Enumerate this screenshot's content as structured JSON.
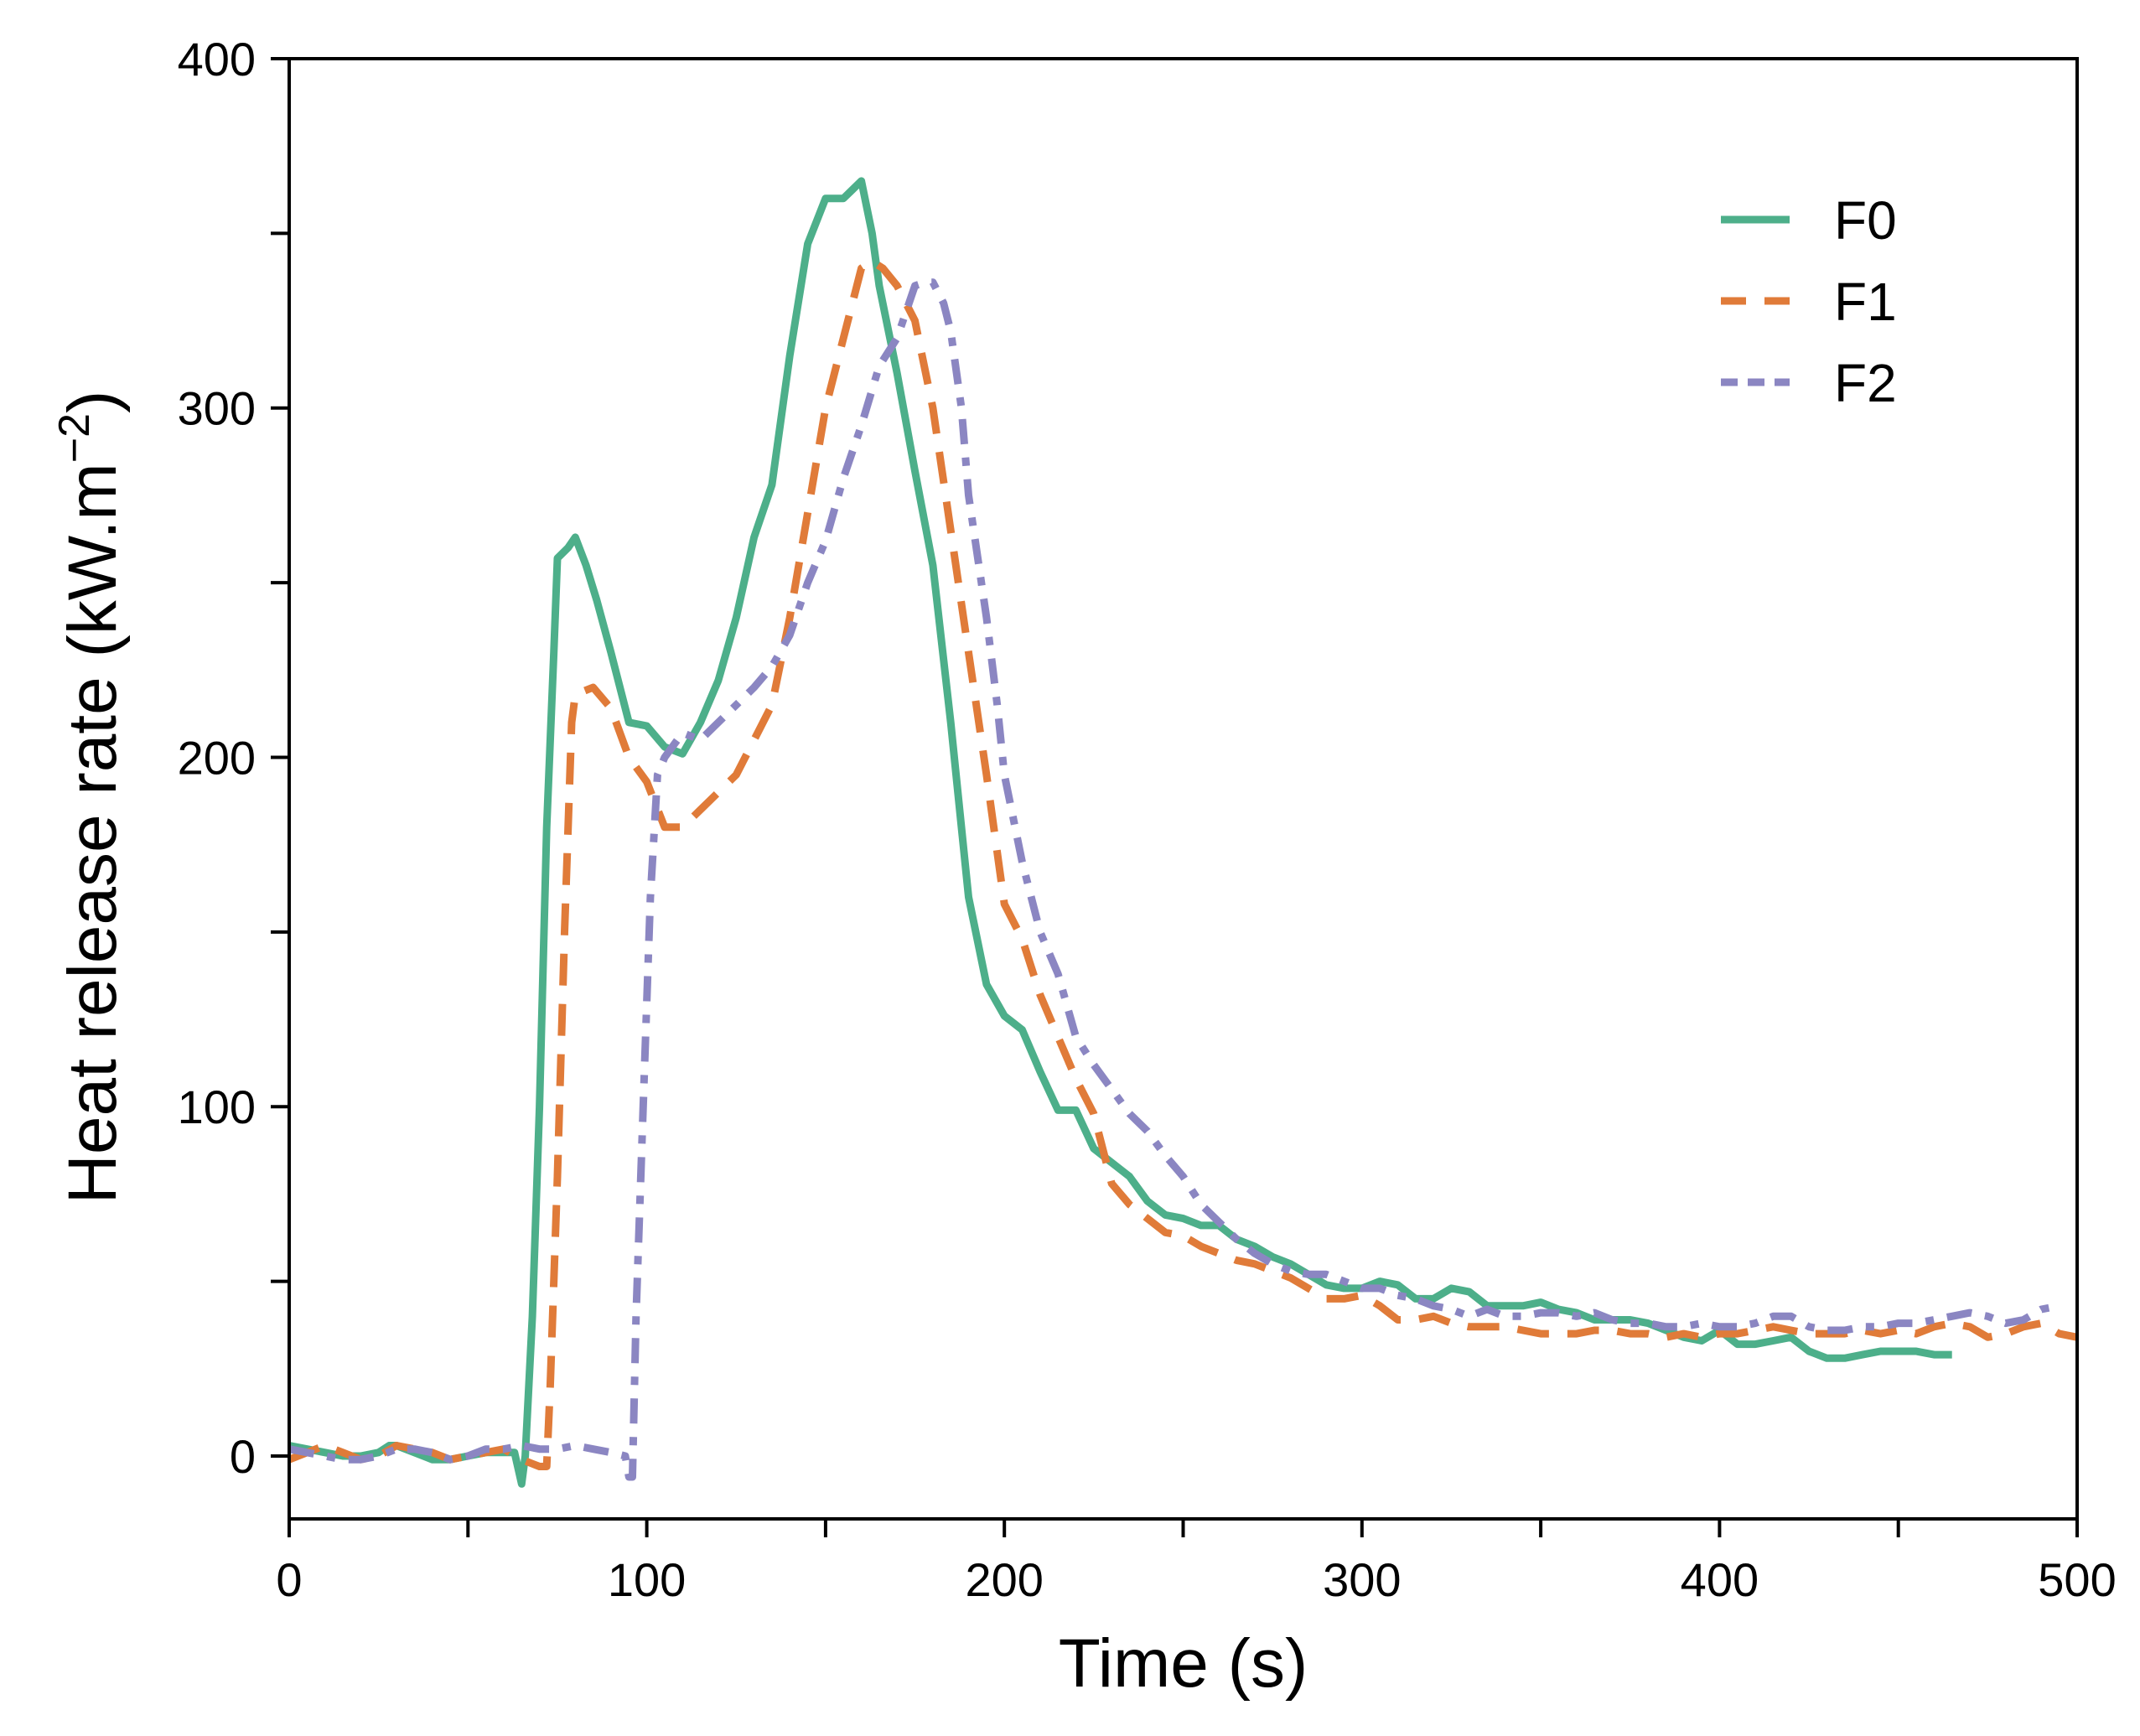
{
  "chart_data": {
    "type": "line",
    "xlabel": "Time (s)",
    "ylabel": "Heat release rate (kW.m",
    "ylabel_superscript": "−2",
    "ylabel_close": ")",
    "xlim": [
      0,
      500
    ],
    "ylim": [
      -18,
      400
    ],
    "xticks": [
      0,
      100,
      200,
      300,
      400,
      500
    ],
    "xtick_labels": [
      "0",
      "100",
      "200",
      "300",
      "400",
      "500"
    ],
    "x_minor_ticks": [
      50,
      150,
      250,
      350,
      450
    ],
    "yticks": [
      0,
      100,
      200,
      300,
      400
    ],
    "ytick_labels": [
      "0",
      "100",
      "200",
      "300",
      "400"
    ],
    "y_minor_ticks": [
      50,
      150,
      250,
      350
    ],
    "legend_position": "top-right",
    "series": [
      {
        "name": "F0",
        "color": "#4daf8a",
        "dash": "solid",
        "points": [
          [
            0,
            3
          ],
          [
            5,
            2
          ],
          [
            10,
            1
          ],
          [
            15,
            0
          ],
          [
            20,
            0
          ],
          [
            25,
            1
          ],
          [
            28,
            3
          ],
          [
            30,
            3
          ],
          [
            35,
            1
          ],
          [
            40,
            -1
          ],
          [
            45,
            -1
          ],
          [
            50,
            0
          ],
          [
            55,
            1
          ],
          [
            60,
            1
          ],
          [
            63,
            1
          ],
          [
            65,
            -8
          ],
          [
            66,
            0
          ],
          [
            68,
            40
          ],
          [
            70,
            100
          ],
          [
            72,
            180
          ],
          [
            74,
            230
          ],
          [
            75,
            257
          ],
          [
            78,
            260
          ],
          [
            80,
            263
          ],
          [
            83,
            255
          ],
          [
            86,
            245
          ],
          [
            90,
            230
          ],
          [
            95,
            210
          ],
          [
            100,
            209
          ],
          [
            105,
            203
          ],
          [
            110,
            201
          ],
          [
            115,
            210
          ],
          [
            120,
            222
          ],
          [
            125,
            240
          ],
          [
            130,
            263
          ],
          [
            135,
            278
          ],
          [
            140,
            315
          ],
          [
            145,
            347
          ],
          [
            150,
            360
          ],
          [
            155,
            360
          ],
          [
            160,
            365
          ],
          [
            163,
            350
          ],
          [
            165,
            335
          ],
          [
            170,
            310
          ],
          [
            175,
            282
          ],
          [
            180,
            255
          ],
          [
            185,
            210
          ],
          [
            190,
            160
          ],
          [
            195,
            135
          ],
          [
            200,
            126
          ],
          [
            205,
            122
          ],
          [
            210,
            110
          ],
          [
            215,
            99
          ],
          [
            220,
            99
          ],
          [
            225,
            88
          ],
          [
            230,
            84
          ],
          [
            235,
            80
          ],
          [
            240,
            73
          ],
          [
            245,
            69
          ],
          [
            250,
            68
          ],
          [
            255,
            66
          ],
          [
            260,
            66
          ],
          [
            265,
            62
          ],
          [
            270,
            60
          ],
          [
            275,
            57
          ],
          [
            280,
            55
          ],
          [
            285,
            52
          ],
          [
            290,
            49
          ],
          [
            295,
            48
          ],
          [
            300,
            48
          ],
          [
            305,
            50
          ],
          [
            310,
            49
          ],
          [
            315,
            45
          ],
          [
            320,
            45
          ],
          [
            325,
            48
          ],
          [
            330,
            47
          ],
          [
            335,
            43
          ],
          [
            340,
            43
          ],
          [
            345,
            43
          ],
          [
            350,
            44
          ],
          [
            355,
            42
          ],
          [
            360,
            41
          ],
          [
            365,
            39
          ],
          [
            370,
            39
          ],
          [
            375,
            39
          ],
          [
            380,
            38
          ],
          [
            385,
            36
          ],
          [
            390,
            34
          ],
          [
            395,
            33
          ],
          [
            400,
            36
          ],
          [
            405,
            32
          ],
          [
            410,
            32
          ],
          [
            415,
            33
          ],
          [
            420,
            34
          ],
          [
            425,
            30
          ],
          [
            430,
            28
          ],
          [
            435,
            28
          ],
          [
            440,
            29
          ],
          [
            445,
            30
          ],
          [
            450,
            30
          ],
          [
            455,
            30
          ],
          [
            460,
            29
          ],
          [
            465,
            29
          ]
        ]
      },
      {
        "name": "F1",
        "color": "#e07b39",
        "dash": "long-dash",
        "points": [
          [
            0,
            -1
          ],
          [
            5,
            1
          ],
          [
            10,
            3
          ],
          [
            15,
            1
          ],
          [
            20,
            -1
          ],
          [
            25,
            0
          ],
          [
            30,
            3
          ],
          [
            35,
            2
          ],
          [
            40,
            1
          ],
          [
            45,
            -1
          ],
          [
            50,
            0
          ],
          [
            55,
            1
          ],
          [
            60,
            2
          ],
          [
            65,
            -1
          ],
          [
            70,
            -3
          ],
          [
            72,
            -3
          ],
          [
            73,
            20
          ],
          [
            75,
            80
          ],
          [
            77,
            150
          ],
          [
            79,
            210
          ],
          [
            80,
            218
          ],
          [
            85,
            220
          ],
          [
            90,
            214
          ],
          [
            95,
            200
          ],
          [
            100,
            193
          ],
          [
            105,
            180
          ],
          [
            110,
            180
          ],
          [
            115,
            185
          ],
          [
            120,
            190
          ],
          [
            125,
            195
          ],
          [
            130,
            205
          ],
          [
            135,
            215
          ],
          [
            140,
            240
          ],
          [
            145,
            270
          ],
          [
            150,
            300
          ],
          [
            155,
            320
          ],
          [
            160,
            340
          ],
          [
            163,
            342
          ],
          [
            166,
            340
          ],
          [
            170,
            335
          ],
          [
            175,
            325
          ],
          [
            180,
            300
          ],
          [
            185,
            265
          ],
          [
            190,
            230
          ],
          [
            195,
            195
          ],
          [
            200,
            158
          ],
          [
            205,
            148
          ],
          [
            210,
            132
          ],
          [
            215,
            120
          ],
          [
            220,
            108
          ],
          [
            225,
            98
          ],
          [
            230,
            78
          ],
          [
            235,
            72
          ],
          [
            240,
            68
          ],
          [
            245,
            64
          ],
          [
            250,
            63
          ],
          [
            255,
            60
          ],
          [
            260,
            58
          ],
          [
            265,
            56
          ],
          [
            270,
            55
          ],
          [
            275,
            53
          ],
          [
            280,
            51
          ],
          [
            285,
            48
          ],
          [
            290,
            45
          ],
          [
            295,
            45
          ],
          [
            300,
            46
          ],
          [
            305,
            43
          ],
          [
            310,
            39
          ],
          [
            315,
            39
          ],
          [
            320,
            40
          ],
          [
            325,
            38
          ],
          [
            330,
            37
          ],
          [
            335,
            37
          ],
          [
            340,
            37
          ],
          [
            345,
            36
          ],
          [
            350,
            35
          ],
          [
            355,
            35
          ],
          [
            360,
            35
          ],
          [
            365,
            36
          ],
          [
            370,
            36
          ],
          [
            375,
            35
          ],
          [
            380,
            35
          ],
          [
            385,
            34
          ],
          [
            390,
            35
          ],
          [
            395,
            34
          ],
          [
            400,
            35
          ],
          [
            405,
            35
          ],
          [
            410,
            36
          ],
          [
            415,
            37
          ],
          [
            420,
            36
          ],
          [
            425,
            35
          ],
          [
            430,
            35
          ],
          [
            435,
            35
          ],
          [
            440,
            36
          ],
          [
            445,
            35
          ],
          [
            450,
            36
          ],
          [
            455,
            35
          ],
          [
            460,
            37
          ],
          [
            465,
            38
          ],
          [
            470,
            37
          ],
          [
            475,
            34
          ],
          [
            480,
            35
          ],
          [
            485,
            37
          ],
          [
            490,
            38
          ],
          [
            495,
            35
          ],
          [
            500,
            34
          ]
        ]
      },
      {
        "name": "F2",
        "color": "#8b86c2",
        "dash": "dash-dot",
        "points": [
          [
            0,
            2
          ],
          [
            5,
            1
          ],
          [
            10,
            0
          ],
          [
            15,
            -1
          ],
          [
            20,
            -1
          ],
          [
            25,
            0
          ],
          [
            30,
            2
          ],
          [
            35,
            2
          ],
          [
            40,
            1
          ],
          [
            45,
            -1
          ],
          [
            50,
            0
          ],
          [
            55,
            2
          ],
          [
            60,
            2
          ],
          [
            65,
            3
          ],
          [
            70,
            2
          ],
          [
            75,
            2
          ],
          [
            80,
            3
          ],
          [
            85,
            2
          ],
          [
            90,
            1
          ],
          [
            94,
            0
          ],
          [
            95,
            -6
          ],
          [
            96,
            -6
          ],
          [
            97,
            40
          ],
          [
            99,
            100
          ],
          [
            101,
            160
          ],
          [
            103,
            195
          ],
          [
            105,
            200
          ],
          [
            110,
            207
          ],
          [
            115,
            205
          ],
          [
            120,
            210
          ],
          [
            125,
            215
          ],
          [
            130,
            220
          ],
          [
            135,
            226
          ],
          [
            140,
            235
          ],
          [
            145,
            250
          ],
          [
            150,
            262
          ],
          [
            155,
            280
          ],
          [
            160,
            295
          ],
          [
            165,
            312
          ],
          [
            170,
            320
          ],
          [
            175,
            335
          ],
          [
            178,
            336
          ],
          [
            180,
            336
          ],
          [
            183,
            330
          ],
          [
            185,
            322
          ],
          [
            188,
            300
          ],
          [
            190,
            275
          ],
          [
            195,
            240
          ],
          [
            198,
            215
          ],
          [
            200,
            195
          ],
          [
            205,
            170
          ],
          [
            210,
            150
          ],
          [
            215,
            138
          ],
          [
            220,
            120
          ],
          [
            225,
            112
          ],
          [
            230,
            105
          ],
          [
            235,
            98
          ],
          [
            240,
            93
          ],
          [
            245,
            86
          ],
          [
            250,
            80
          ],
          [
            255,
            72
          ],
          [
            260,
            67
          ],
          [
            265,
            62
          ],
          [
            270,
            58
          ],
          [
            275,
            55
          ],
          [
            280,
            53
          ],
          [
            285,
            52
          ],
          [
            290,
            52
          ],
          [
            295,
            50
          ],
          [
            300,
            48
          ],
          [
            305,
            48
          ],
          [
            310,
            46
          ],
          [
            315,
            45
          ],
          [
            320,
            43
          ],
          [
            325,
            42
          ],
          [
            330,
            40
          ],
          [
            335,
            42
          ],
          [
            340,
            40
          ],
          [
            345,
            40
          ],
          [
            350,
            41
          ],
          [
            355,
            41
          ],
          [
            360,
            40
          ],
          [
            365,
            41
          ],
          [
            370,
            39
          ],
          [
            375,
            38
          ],
          [
            380,
            38
          ],
          [
            385,
            37
          ],
          [
            390,
            37
          ],
          [
            395,
            38
          ],
          [
            400,
            37
          ],
          [
            405,
            37
          ],
          [
            410,
            38
          ],
          [
            415,
            40
          ],
          [
            420,
            40
          ],
          [
            425,
            37
          ],
          [
            430,
            36
          ],
          [
            435,
            36
          ],
          [
            440,
            37
          ],
          [
            445,
            37
          ],
          [
            450,
            38
          ],
          [
            455,
            38
          ],
          [
            460,
            39
          ],
          [
            465,
            40
          ],
          [
            470,
            41
          ],
          [
            475,
            40
          ],
          [
            480,
            38
          ],
          [
            485,
            39
          ],
          [
            490,
            42
          ],
          [
            495,
            43
          ]
        ]
      }
    ]
  }
}
